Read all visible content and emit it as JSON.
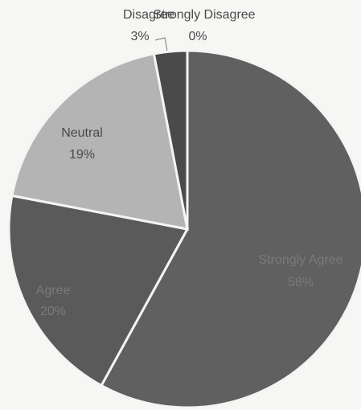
{
  "chart_data": {
    "type": "pie",
    "start": "top",
    "direction": "clockwise",
    "slices": [
      {
        "label": "Strongly Disagree",
        "pct_label": "0%",
        "value": 0,
        "color": "#d6d6d6"
      },
      {
        "label": "Strongly Agree",
        "pct_label": "58%",
        "value": 58,
        "color": "#606060"
      },
      {
        "label": "Agree",
        "pct_label": "20%",
        "value": 20,
        "color": "#5a5a5a"
      },
      {
        "label": "Neutral",
        "pct_label": "19%",
        "value": 19,
        "color": "#b4b4b4"
      },
      {
        "label": "Disagree",
        "pct_label": "3%",
        "value": 3,
        "color": "#4a4a4a"
      }
    ]
  }
}
